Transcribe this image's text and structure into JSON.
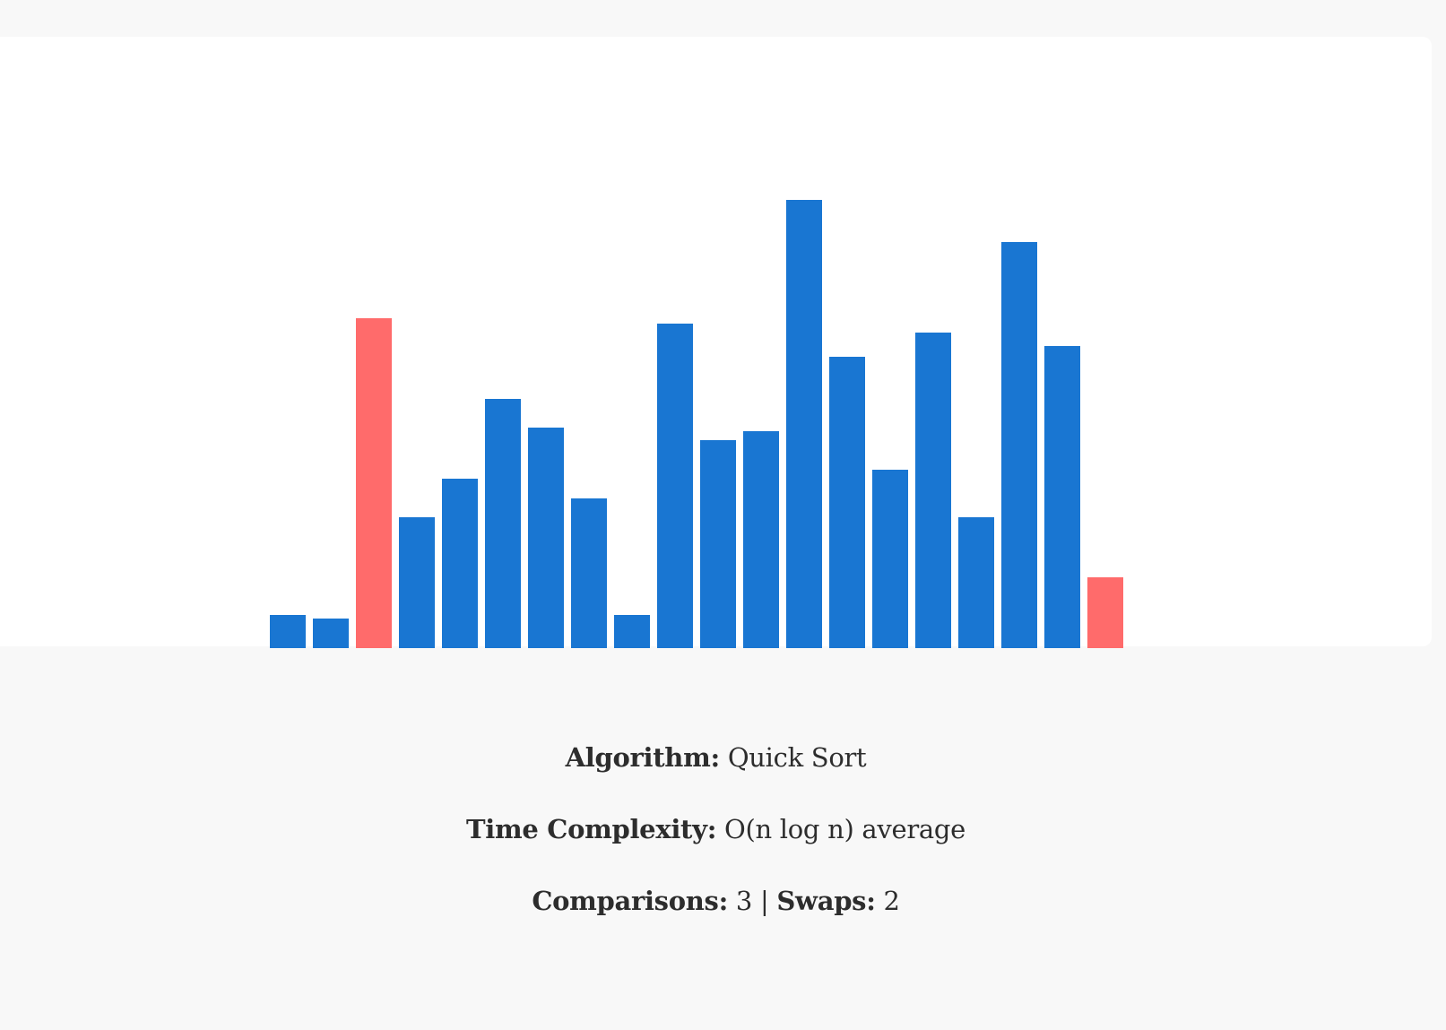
{
  "colors": {
    "default_bar": "#1976d2",
    "active_bar": "#ff6b6b"
  },
  "chart_data": {
    "type": "bar",
    "values": [
      18,
      16,
      181,
      72,
      93,
      137,
      121,
      82,
      18,
      178,
      114,
      119,
      246,
      160,
      98,
      173,
      72,
      223,
      166,
      39
    ],
    "highlighted_indices": [
      2,
      19
    ],
    "ylim": [
      0,
      246
    ]
  },
  "stats": {
    "algorithm_label": "Algorithm:",
    "algorithm_value": "Quick Sort",
    "complexity_label": "Time Complexity:",
    "complexity_value": "O(n log n) average",
    "comparisons_label": "Comparisons:",
    "comparisons_value": "3",
    "separator": "|",
    "swaps_label": "Swaps:",
    "swaps_value": "2"
  }
}
